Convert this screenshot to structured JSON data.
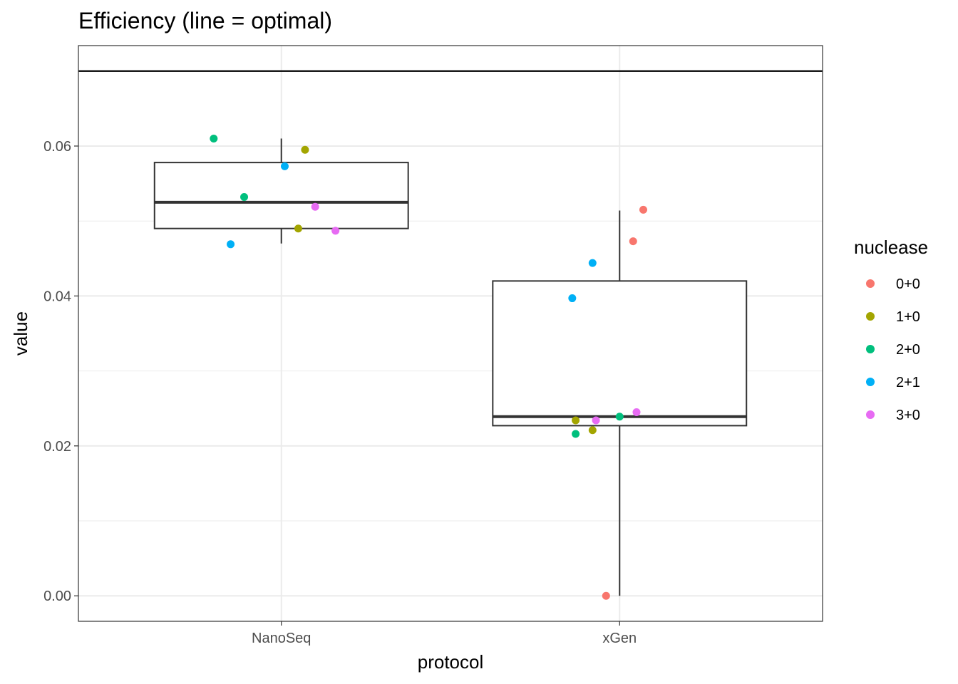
{
  "chart_data": {
    "type": "boxplot",
    "title": "Efficiency (line = optimal)",
    "xlabel": "protocol",
    "ylabel": "value",
    "categories": [
      "NanoSeq",
      "xGen"
    ],
    "ylim": [
      -0.0034,
      0.0734
    ],
    "yticks": [
      0.0,
      0.02,
      0.04,
      0.06
    ],
    "ytick_labels": [
      "0.00",
      "0.02",
      "0.04",
      "0.06"
    ],
    "grid": true,
    "reference_line": {
      "y": 0.07
    },
    "boxes": [
      {
        "category": "NanoSeq",
        "whisker_low": 0.047,
        "q1": 0.049,
        "median": 0.0525,
        "q3": 0.0578,
        "whisker_high": 0.061
      },
      {
        "category": "xGen",
        "whisker_low": 0.0,
        "q1": 0.0227,
        "median": 0.0239,
        "q3": 0.042,
        "whisker_high": 0.0514
      }
    ],
    "legend": {
      "title": "nuclease",
      "position": "right",
      "entries": [
        {
          "label": "0+0",
          "color": "#F8766D"
        },
        {
          "label": "1+0",
          "color": "#A3A500"
        },
        {
          "label": "2+0",
          "color": "#00BF7D"
        },
        {
          "label": "2+1",
          "color": "#00B0F6"
        },
        {
          "label": "3+0",
          "color": "#E76BF3"
        }
      ]
    },
    "points": [
      {
        "category": "NanoSeq",
        "nuclease": "2+0",
        "jitter": -0.2,
        "y": 0.061
      },
      {
        "category": "NanoSeq",
        "nuclease": "1+0",
        "jitter": 0.07,
        "y": 0.0595
      },
      {
        "category": "NanoSeq",
        "nuclease": "2+1",
        "jitter": 0.01,
        "y": 0.0573
      },
      {
        "category": "NanoSeq",
        "nuclease": "2+0",
        "jitter": -0.11,
        "y": 0.0532
      },
      {
        "category": "NanoSeq",
        "nuclease": "3+0",
        "jitter": 0.1,
        "y": 0.0519
      },
      {
        "category": "NanoSeq",
        "nuclease": "1+0",
        "jitter": 0.05,
        "y": 0.049
      },
      {
        "category": "NanoSeq",
        "nuclease": "3+0",
        "jitter": 0.16,
        "y": 0.0487
      },
      {
        "category": "NanoSeq",
        "nuclease": "2+1",
        "jitter": -0.15,
        "y": 0.0469
      },
      {
        "category": "xGen",
        "nuclease": "0+0",
        "jitter": 0.07,
        "y": 0.0515
      },
      {
        "category": "xGen",
        "nuclease": "0+0",
        "jitter": 0.04,
        "y": 0.0473
      },
      {
        "category": "xGen",
        "nuclease": "2+1",
        "jitter": -0.08,
        "y": 0.0444
      },
      {
        "category": "xGen",
        "nuclease": "2+1",
        "jitter": -0.14,
        "y": 0.0397
      },
      {
        "category": "xGen",
        "nuclease": "3+0",
        "jitter": 0.05,
        "y": 0.0245
      },
      {
        "category": "xGen",
        "nuclease": "2+0",
        "jitter": 0.0,
        "y": 0.0239
      },
      {
        "category": "xGen",
        "nuclease": "1+0",
        "jitter": -0.13,
        "y": 0.0234
      },
      {
        "category": "xGen",
        "nuclease": "3+0",
        "jitter": -0.07,
        "y": 0.0234
      },
      {
        "category": "xGen",
        "nuclease": "1+0",
        "jitter": -0.08,
        "y": 0.0221
      },
      {
        "category": "xGen",
        "nuclease": "2+0",
        "jitter": -0.13,
        "y": 0.0216
      },
      {
        "category": "xGen",
        "nuclease": "0+0",
        "jitter": -0.04,
        "y": 0.0
      }
    ]
  }
}
